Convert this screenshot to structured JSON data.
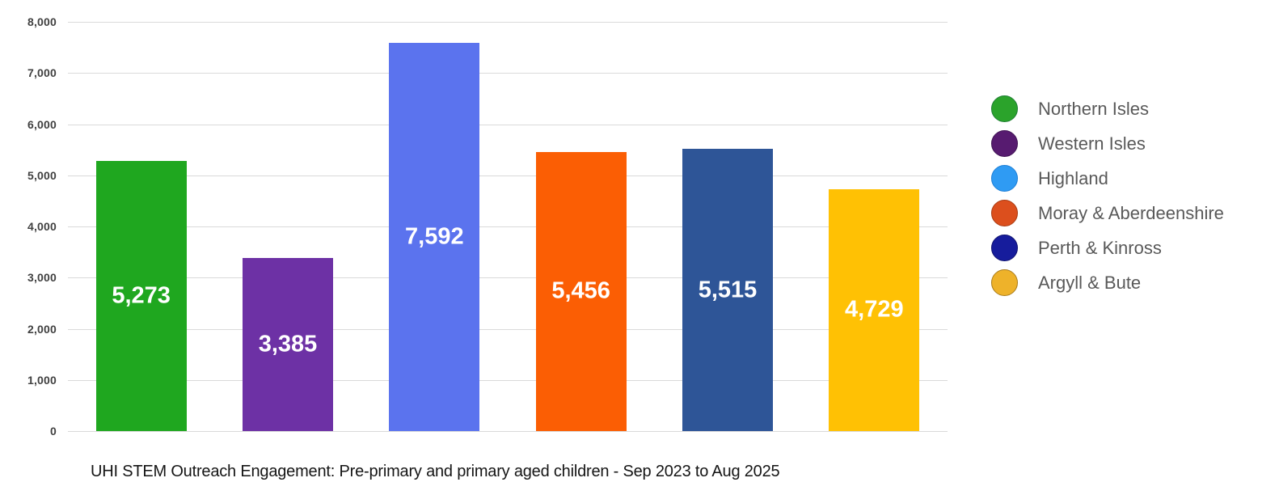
{
  "chart_data": {
    "type": "bar",
    "title": "UHI STEM Outreach Engagement: Pre-primary and primary aged children - Sep 2023 to Aug 2025",
    "categories": [
      "Northern Isles",
      "Western Isles",
      "Highland",
      "Moray & Aberdeenshire",
      "Perth & Kinross",
      "Argyll & Bute"
    ],
    "values": [
      5273,
      3385,
      7592,
      5456,
      5515,
      4729
    ],
    "value_labels": [
      "5,273",
      "3,385",
      "7,592",
      "5,456",
      "5,515",
      "4,729"
    ],
    "bar_colors": [
      "#1fa71f",
      "#6d31a5",
      "#5b73ee",
      "#fb5e04",
      "#2e5597",
      "#ffc104"
    ],
    "xlabel": "",
    "ylabel": "",
    "ylim": [
      0,
      8000
    ],
    "ytick_values": [
      0,
      1000,
      2000,
      3000,
      4000,
      5000,
      6000,
      7000,
      8000
    ],
    "ytick_labels": [
      "0",
      "1,000",
      "2,000",
      "3,000",
      "4,000",
      "5,000",
      "6,000",
      "7,000",
      "8,000"
    ],
    "grid": true,
    "gridline_color": "#dadada",
    "axis_tick_color": "#404040",
    "value_label_color": "#ffffff",
    "background_color": "#ffffff",
    "legend": {
      "position": "right",
      "text_color": "#595959",
      "items": [
        {
          "label": "Northern Isles",
          "swatch": "circle",
          "fill": "#2ba32b",
          "stroke": "#1e7e34"
        },
        {
          "label": "Western Isles",
          "swatch": "circle",
          "fill": "#571b70",
          "stroke": "#3f1253"
        },
        {
          "label": "Highland",
          "swatch": "circle",
          "fill": "#2f9bf3",
          "stroke": "#1b7ed6"
        },
        {
          "label": "Moray & Aberdeenshire",
          "swatch": "circle",
          "fill": "#dc4f1d",
          "stroke": "#a93b12"
        },
        {
          "label": "Perth & Kinross",
          "swatch": "circle",
          "fill": "#161c9c",
          "stroke": "#0e1170"
        },
        {
          "label": "Argyll & Bute",
          "swatch": "circle",
          "fill": "#eeb22a",
          "stroke": "#a97b1a"
        }
      ]
    }
  }
}
